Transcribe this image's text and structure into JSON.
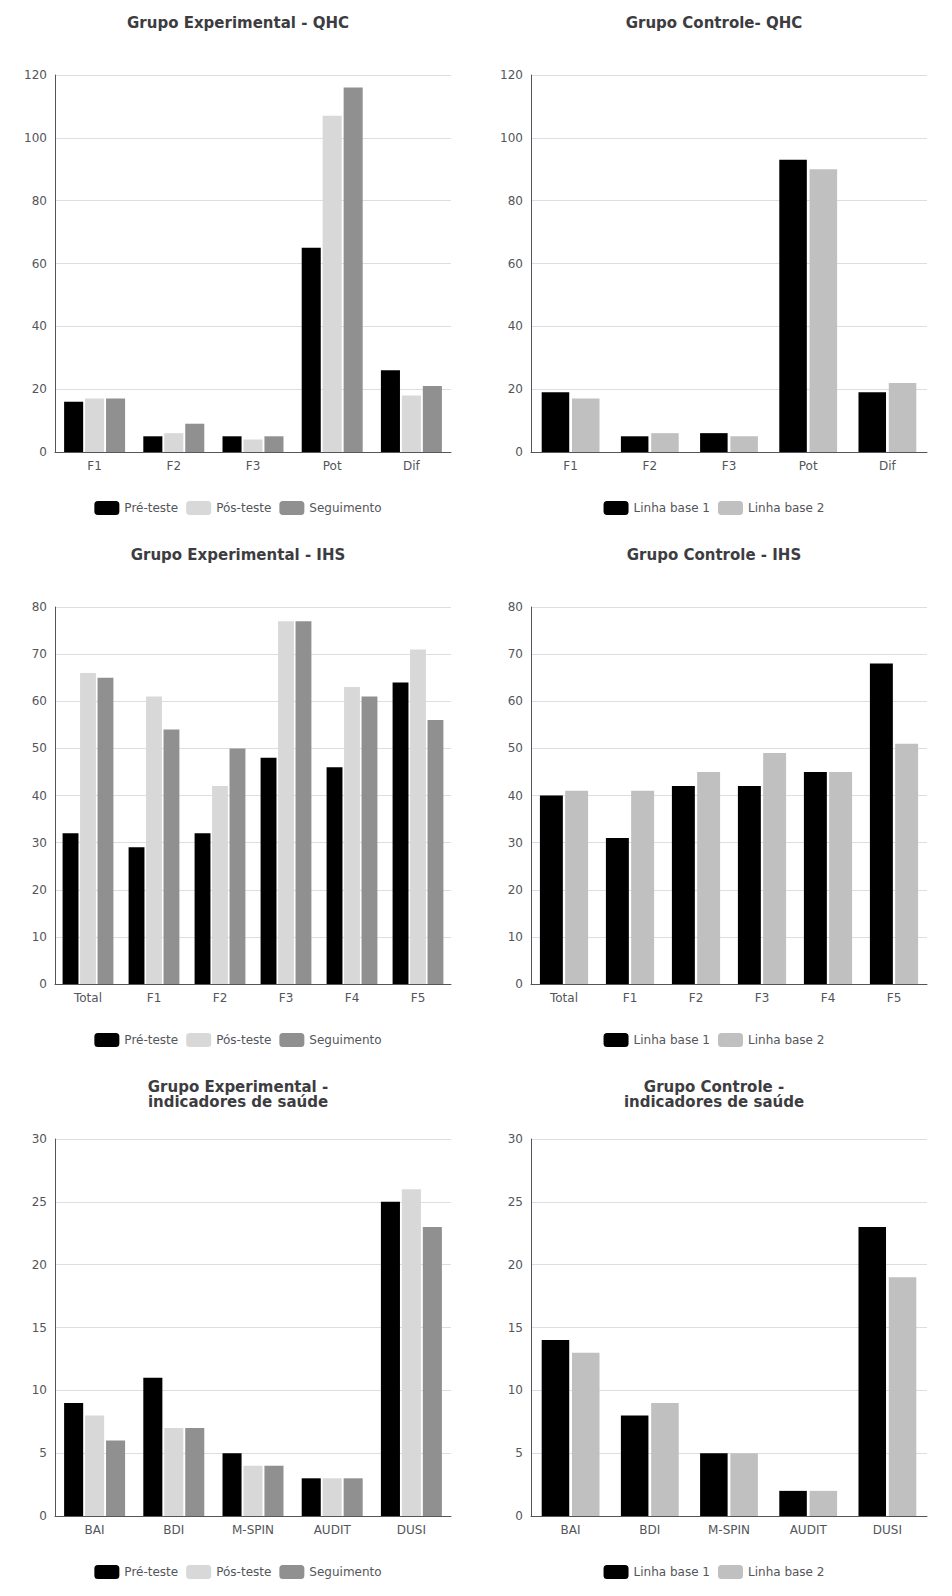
{
  "chart_data": [
    {
      "type": "bar",
      "title": "Grupo Experimental - QHC",
      "categories": [
        "F1",
        "F2",
        "F3",
        "Pot",
        "Dif"
      ],
      "series": [
        {
          "name": "Pré-teste",
          "color": "#000000",
          "values": [
            16,
            5,
            5,
            65,
            26
          ]
        },
        {
          "name": "Pós-teste",
          "color": "#d8d8d8",
          "values": [
            17,
            6,
            4,
            107,
            18
          ]
        },
        {
          "name": "Seguimento",
          "color": "#909090",
          "values": [
            17,
            9,
            5,
            116,
            21
          ]
        }
      ],
      "ylim": [
        0,
        120
      ],
      "yticks": [
        0,
        20,
        40,
        60,
        80,
        100,
        120
      ],
      "grid": true,
      "legend": "bottom"
    },
    {
      "type": "bar",
      "title": "Grupo Controle- QHC",
      "categories": [
        "F1",
        "F2",
        "F3",
        "Pot",
        "Dif"
      ],
      "series": [
        {
          "name": "Linha base 1",
          "color": "#000000",
          "values": [
            19,
            5,
            6,
            93,
            19
          ]
        },
        {
          "name": "Linha base 2",
          "color": "#c0c0c0",
          "values": [
            17,
            6,
            5,
            90,
            22
          ]
        }
      ],
      "ylim": [
        0,
        120
      ],
      "yticks": [
        0,
        20,
        40,
        60,
        80,
        100,
        120
      ],
      "grid": true,
      "legend": "bottom"
    },
    {
      "type": "bar",
      "title": "Grupo Experimental - IHS",
      "categories": [
        "Total",
        "F1",
        "F2",
        "F3",
        "F4",
        "F5"
      ],
      "series": [
        {
          "name": "Pré-teste",
          "color": "#000000",
          "values": [
            32,
            29,
            32,
            48,
            46,
            64
          ]
        },
        {
          "name": "Pós-teste",
          "color": "#d8d8d8",
          "values": [
            66,
            61,
            42,
            77,
            63,
            71
          ]
        },
        {
          "name": "Seguimento",
          "color": "#909090",
          "values": [
            65,
            54,
            50,
            77,
            61,
            56
          ]
        }
      ],
      "ylim": [
        0,
        80
      ],
      "yticks": [
        0,
        10,
        20,
        30,
        40,
        50,
        60,
        70,
        80
      ],
      "grid": true,
      "legend": "bottom"
    },
    {
      "type": "bar",
      "title": "Grupo Controle - IHS",
      "categories": [
        "Total",
        "F1",
        "F2",
        "F3",
        "F4",
        "F5"
      ],
      "series": [
        {
          "name": "Linha base 1",
          "color": "#000000",
          "values": [
            40,
            31,
            42,
            42,
            45,
            68
          ]
        },
        {
          "name": "Linha base 2",
          "color": "#c0c0c0",
          "values": [
            41,
            41,
            45,
            49,
            45,
            51
          ]
        }
      ],
      "ylim": [
        0,
        80
      ],
      "yticks": [
        0,
        10,
        20,
        30,
        40,
        50,
        60,
        70,
        80
      ],
      "grid": true,
      "legend": "bottom"
    },
    {
      "type": "bar",
      "title": "Grupo Experimental -\nindicadores de saúde",
      "categories": [
        "BAI",
        "BDI",
        "M-SPIN",
        "AUDIT",
        "DUSI"
      ],
      "series": [
        {
          "name": "Pré-teste",
          "color": "#000000",
          "values": [
            9,
            11,
            5,
            3,
            25
          ]
        },
        {
          "name": "Pós-teste",
          "color": "#d8d8d8",
          "values": [
            8,
            7,
            4,
            3,
            26
          ]
        },
        {
          "name": "Seguimento",
          "color": "#909090",
          "values": [
            6,
            7,
            4,
            3,
            23
          ]
        }
      ],
      "ylim": [
        0,
        30
      ],
      "yticks": [
        0,
        5,
        10,
        15,
        20,
        25,
        30
      ],
      "grid": true,
      "legend": "bottom"
    },
    {
      "type": "bar",
      "title": "Grupo Controle -\nindicadores de saúde",
      "categories": [
        "BAI",
        "BDI",
        "M-SPIN",
        "AUDIT",
        "DUSI"
      ],
      "series": [
        {
          "name": "Linha base 1",
          "color": "#000000",
          "values": [
            14,
            8,
            5,
            2,
            23
          ]
        },
        {
          "name": "Linha base 2",
          "color": "#c0c0c0",
          "values": [
            13,
            9,
            5,
            2,
            19
          ]
        }
      ],
      "ylim": [
        0,
        30
      ],
      "yticks": [
        0,
        5,
        10,
        15,
        20,
        25,
        30
      ],
      "grid": true,
      "legend": "bottom"
    }
  ]
}
